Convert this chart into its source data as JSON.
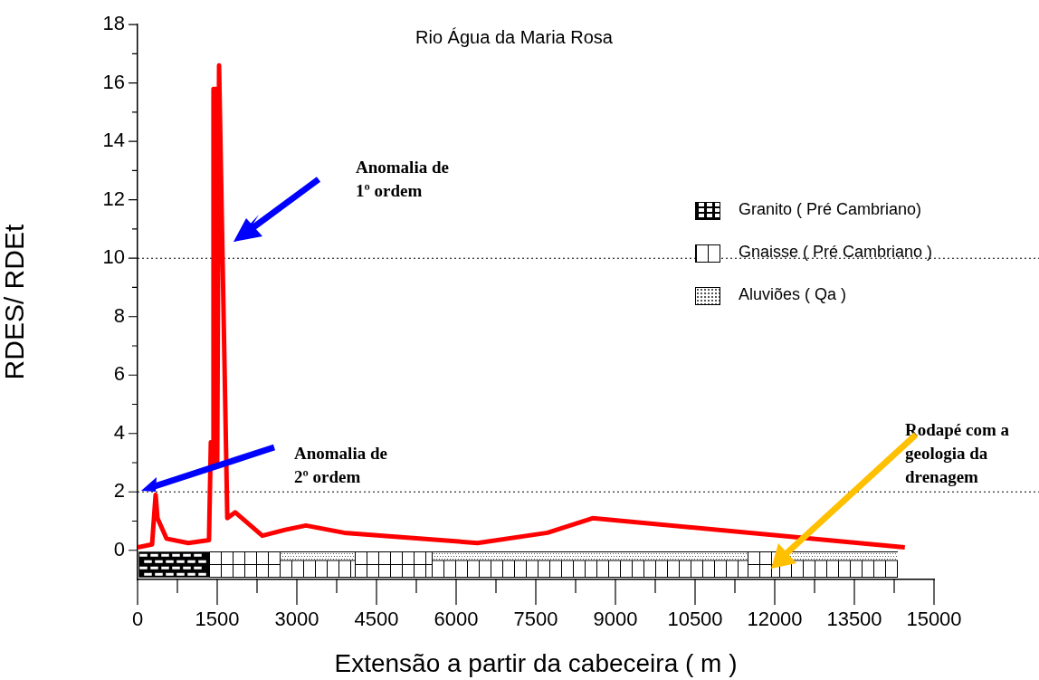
{
  "chart_data": {
    "type": "line",
    "title": "Rio Água da Maria Rosa",
    "xlabel": "Extensão a partir da cabeceira ( m )",
    "ylabel": "RDES/ RDEt",
    "x": [
      0,
      273,
      340,
      375,
      545,
      955,
      1345,
      1380,
      1430,
      1430,
      1480,
      1500,
      1535,
      1690,
      1840,
      2350,
      2780,
      3170,
      3890,
      6400,
      7720,
      8570,
      14450
    ],
    "series": [
      {
        "color": "#ff0000",
        "values": [
          0.1,
          0.2,
          1.9,
          1.1,
          0.4,
          0.25,
          0.35,
          3.7,
          3.0,
          15.8,
          15.8,
          3.0,
          16.6,
          1.1,
          1.3,
          0.5,
          0.7,
          0.85,
          0.6,
          0.25,
          0.6,
          1.1,
          0.1
        ]
      }
    ],
    "xlim": [
      0,
      15000
    ],
    "ylim": [
      -1,
      18
    ],
    "xticks": [
      0,
      {
        "value": 750,
        "label": null
      },
      1500,
      {
        "value": 2250,
        "label": null
      },
      3000,
      {
        "value": 3750,
        "label": null
      },
      4500,
      {
        "value": 5250,
        "label": null
      },
      6000,
      {
        "value": 6750,
        "label": null
      },
      7500,
      {
        "value": 8250,
        "label": null
      },
      9000,
      {
        "value": 9750,
        "label": null
      },
      10500,
      {
        "value": 11250,
        "label": null
      },
      12000,
      {
        "value": 12750,
        "label": null
      },
      13500,
      {
        "value": 14250,
        "label": null
      },
      15000
    ],
    "yticks": [
      0,
      {
        "value": 1,
        "label": null
      },
      2,
      {
        "value": 3,
        "label": null
      },
      4,
      {
        "value": 5,
        "label": null
      },
      6,
      {
        "value": 7,
        "label": null
      },
      8,
      {
        "value": 9,
        "label": null
      },
      10,
      {
        "value": 11,
        "label": null
      },
      12,
      {
        "value": 13,
        "label": null
      },
      14,
      {
        "value": 15,
        "label": null
      },
      16,
      {
        "value": 17,
        "label": null
      },
      18
    ],
    "ref_lines": [
      {
        "axis": "y",
        "value": 10,
        "line_style": "dotted",
        "color": "#000000"
      },
      {
        "axis": "y",
        "value": 2,
        "line_style": "dotted",
        "color": "#000000"
      }
    ],
    "annotations": [
      "Anomalia de\n1º ordem",
      "Anomalia de\n2º ordem",
      "Rodapé com a\ngeologia da\ndrenagem",
      "Granito ( Pré Cambriano)",
      "Gnaisse ( Pré Cambriano )",
      "Aluviões ( Qa )"
    ],
    "grid": false,
    "legend": false,
    "marker": "none",
    "line_style": "solid"
  }
}
